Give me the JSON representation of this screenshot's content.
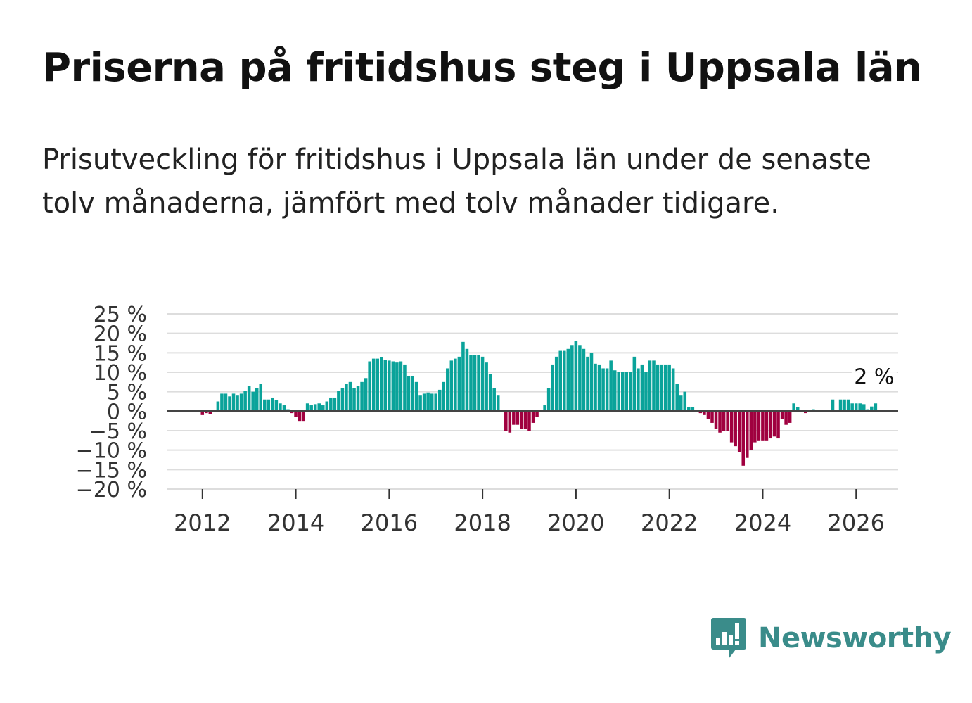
{
  "header": {
    "title": "Priserna på fritidshus steg i Uppsala län",
    "subtitle": "Prisutveckling för fritidshus i Uppsala län under de senaste tolv månaderna, jämfört med tolv månader tidigare."
  },
  "brand": {
    "name": "Newsworthy",
    "color": "#3a8c8a",
    "icon": "newsworthy-chart-bubble-icon"
  },
  "colors": {
    "positive": "#0aa39a",
    "negative": "#a0003f",
    "grid": "#dddddd",
    "zero": "#444444"
  },
  "chart_data": {
    "type": "bar",
    "title": "Priserna på fritidshus steg i Uppsala län",
    "ylabel": "",
    "xlabel": "",
    "ylim": [
      -20,
      25
    ],
    "xlim": [
      2011.25,
      2026.9
    ],
    "y_ticks": [
      25,
      20,
      15,
      10,
      5,
      0,
      -5,
      -10,
      -15,
      -20
    ],
    "y_tick_labels": [
      "25 %",
      "20 %",
      "15 %",
      "10 %",
      "5 %",
      "0 %",
      "−5 %",
      "−10 %",
      "−15 %",
      "−20 %"
    ],
    "x_ticks": [
      2012,
      2014,
      2016,
      2018,
      2020,
      2022,
      2024,
      2026
    ],
    "x_tick_labels": [
      "2012",
      "2014",
      "2016",
      "2018",
      "2020",
      "2022",
      "2024",
      "2026"
    ],
    "grid": true,
    "start": 2011.333,
    "step": 0.08333,
    "values": [
      0,
      0,
      0,
      0,
      0,
      0,
      0,
      0,
      -1,
      -0.5,
      -0.8,
      0.3,
      2.5,
      4.5,
      4.5,
      3.8,
      4.5,
      4,
      4.5,
      5.2,
      6.5,
      5,
      6,
      7,
      3,
      3,
      3.5,
      2.8,
      2,
      1.5,
      0.5,
      -0.5,
      -1.5,
      -2.5,
      -2.5,
      2,
      1.5,
      1.8,
      2,
      1.5,
      2.5,
      3.5,
      3.5,
      5.2,
      6,
      7,
      7.5,
      6,
      6.5,
      7.5,
      8.5,
      12.8,
      13.5,
      13.5,
      13.8,
      13.2,
      13,
      12.8,
      12.5,
      12.8,
      12,
      9,
      9,
      7.5,
      4,
      4.5,
      4.8,
      4.5,
      4.5,
      5.5,
      7.5,
      11,
      13,
      13.5,
      14,
      17.8,
      16,
      14.5,
      14.5,
      14.5,
      14,
      12.5,
      9.5,
      6,
      4,
      0,
      -5,
      -5.5,
      -3.5,
      -3.5,
      -4.5,
      -4.5,
      -5,
      -3,
      -1.5,
      0,
      1.5,
      6,
      12,
      14,
      15.5,
      15.5,
      16,
      17,
      18,
      17,
      16,
      14,
      15,
      12.2,
      12,
      11,
      11,
      13,
      10.5,
      10,
      10,
      10,
      10,
      14,
      11,
      12,
      10,
      13,
      13,
      12,
      12,
      12,
      12,
      11,
      7,
      4,
      5,
      1,
      1,
      0,
      -0.5,
      -1,
      -2,
      -3,
      -4.5,
      -5.5,
      -5,
      -5,
      -8,
      -9,
      -10.5,
      -14,
      -12,
      -10,
      -8,
      -7.5,
      -7.5,
      -7.5,
      -7,
      -6.5,
      -7,
      -2,
      -3.5,
      -3,
      2,
      1,
      0,
      -0.5,
      0,
      0.5,
      0,
      0,
      0,
      0,
      3,
      0,
      3,
      3,
      3,
      2,
      2,
      2,
      1.8,
      0.5,
      1.2,
      2
    ],
    "annotation": {
      "label": "2 %",
      "value": 2
    }
  }
}
